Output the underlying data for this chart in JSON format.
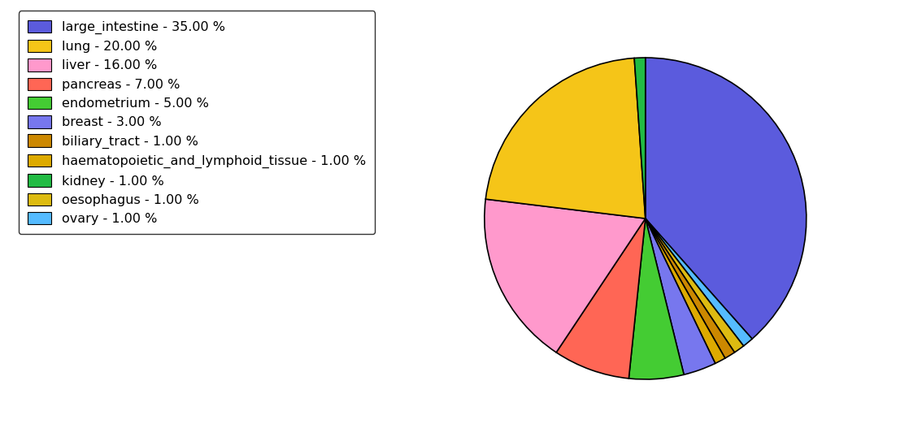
{
  "labels": [
    "large_intestine",
    "lung",
    "liver",
    "pancreas",
    "endometrium",
    "breast",
    "biliary_tract",
    "haematopoietic_and_lymphoid_tissue",
    "kidney",
    "oesophagus",
    "ovary"
  ],
  "values": [
    35,
    20,
    16,
    7,
    5,
    3,
    1,
    1,
    1,
    1,
    1
  ],
  "colors": [
    "#5b5bdd",
    "#f5c518",
    "#ff99cc",
    "#ff6655",
    "#44cc33",
    "#7777ee",
    "#cc8800",
    "#ddaa00",
    "#22bb44",
    "#ddbb11",
    "#55bbff"
  ],
  "legend_labels": [
    "large_intestine - 35.00 %",
    "lung - 20.00 %",
    "liver - 16.00 %",
    "pancreas - 7.00 %",
    "endometrium - 5.00 %",
    "breast - 3.00 %",
    "biliary_tract - 1.00 %",
    "haematopoietic_and_lymphoid_tissue - 1.00 %",
    "kidney - 1.00 %",
    "oesophagus - 1.00 %",
    "ovary - 1.00 %"
  ],
  "figsize": [
    11.34,
    5.38
  ],
  "dpi": 100,
  "background_color": "#ffffff"
}
